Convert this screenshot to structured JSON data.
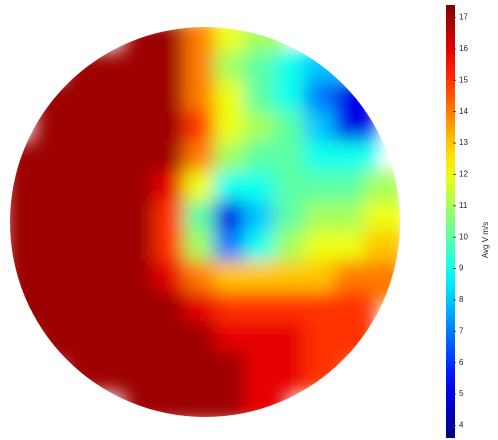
{
  "chart_data": {
    "type": "heatmap",
    "colormap": "jet",
    "colorbar": {
      "label": "Avg V m/s",
      "ylim": [
        3.6,
        17.4
      ],
      "yticks": [
        4,
        5,
        6,
        7,
        8,
        9,
        10,
        11,
        12,
        13,
        14,
        15,
        16,
        17
      ]
    },
    "values": [
      [
        null,
        null,
        null,
        null,
        17,
        17,
        14,
        12,
        11,
        null,
        null,
        null,
        null
      ],
      [
        null,
        null,
        17,
        17,
        17,
        17,
        14,
        11,
        10,
        9,
        8,
        null,
        null
      ],
      [
        null,
        17,
        17,
        17,
        17,
        17,
        14,
        12,
        10,
        9,
        7,
        5,
        null
      ],
      [
        null,
        17,
        17,
        17,
        17,
        17,
        15,
        12,
        11,
        10,
        8,
        5,
        null
      ],
      [
        17,
        17,
        17,
        17,
        17,
        17,
        14,
        11,
        10,
        10,
        9,
        9,
        null
      ],
      [
        17,
        17,
        17,
        17,
        17,
        16,
        12,
        9,
        9,
        10,
        10,
        10,
        11
      ],
      [
        17,
        17,
        17,
        17,
        17,
        15,
        10,
        5,
        8,
        10,
        11,
        11,
        12
      ],
      [
        17,
        17,
        17,
        17,
        17,
        15,
        11,
        7,
        9,
        11,
        12,
        12,
        13
      ],
      [
        17,
        17,
        17,
        17,
        17,
        16,
        14,
        13,
        13,
        13,
        13,
        14,
        14
      ],
      [
        17,
        17,
        17,
        17,
        17,
        17,
        16,
        15,
        15,
        15,
        15,
        15,
        null
      ],
      [
        null,
        17,
        17,
        17,
        17,
        17,
        17,
        16,
        16,
        16,
        15,
        15,
        null
      ],
      [
        null,
        null,
        17,
        17,
        17,
        17,
        17,
        17,
        16,
        16,
        15,
        null,
        null
      ],
      [
        null,
        null,
        null,
        null,
        17,
        17,
        17,
        17,
        16,
        null,
        null,
        null,
        null
      ]
    ]
  }
}
